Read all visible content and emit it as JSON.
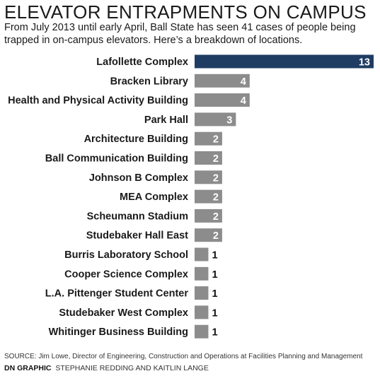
{
  "title": "ELEVATOR ENTRAPMENTS ON CAMPUS",
  "subtitle": "From July 2013 until early April, Ball State has seen 41 cases of people being trapped in on-campus elevators. Here’s a breakdown of locations.",
  "source": "SOURCE: Jim Lowe, Director of Engineering, Construction and Operations at Facilities Planning and Management",
  "credit": {
    "label": "DN GRAPHIC",
    "names": "STEPHANIE REDDING AND KAITLIN LANGE"
  },
  "colors": {
    "highlight_bar": "#1f3d63",
    "bar": "#8c8c8c",
    "bar_value_text": "#ffffff",
    "outside_value_text": "#111111"
  },
  "chart_data": {
    "type": "bar",
    "orientation": "horizontal",
    "title": "ELEVATOR ENTRAPMENTS ON CAMPUS",
    "xlabel": "",
    "ylabel": "",
    "grid": false,
    "xlim": [
      0,
      13
    ],
    "categories": [
      "Lafollette Complex",
      "Bracken Library",
      "Health and Physical Activity Building",
      "Park Hall",
      "Architecture Building",
      "Ball Communication Building",
      "Johnson B Complex",
      "MEA Complex",
      "Scheumann Stadium",
      "Studebaker Hall East",
      "Burris Laboratory School",
      "Cooper Science Complex",
      "L.A. Pittenger Student Center",
      "Studebaker West Complex",
      "Whitinger Business Building"
    ],
    "values": [
      13,
      4,
      4,
      3,
      2,
      2,
      2,
      2,
      2,
      2,
      1,
      1,
      1,
      1,
      1
    ]
  }
}
